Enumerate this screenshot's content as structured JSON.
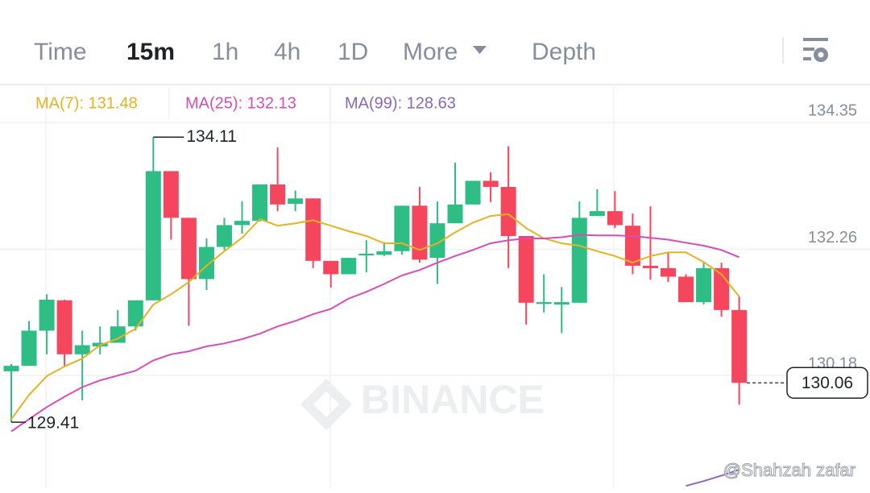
{
  "tabs": [
    "Time",
    "15m",
    "1h",
    "4h",
    "1D",
    "More",
    "Depth"
  ],
  "chart_data": {
    "type": "candlestick",
    "up_color": "#2ebd85",
    "down_color": "#f6465d",
    "ylim": [
      128.31,
      134.95
    ],
    "yticks": [
      134.35,
      132.26,
      130.18
    ],
    "grid": true,
    "open": [
      130.25,
      130.34,
      130.92,
      131.42,
      130.53,
      130.66,
      130.72,
      130.99,
      131.42,
      133.55,
      132.78,
      131.77,
      132.3,
      132.66,
      132.73,
      133.33,
      133.01,
      133.1,
      132.07,
      131.85,
      132.16,
      132.17,
      132.23,
      132.98,
      132.12,
      132.69,
      133.0,
      133.39,
      133.29,
      132.48,
      131.36,
      131.35,
      131.38,
      132.81,
      132.89,
      132.65,
      131.99,
      131.95,
      131.81,
      131.39,
      131.95,
      131.26
    ],
    "high": [
      130.37,
      131.08,
      131.52,
      131.43,
      130.92,
      130.99,
      131.26,
      131.42,
      134.11,
      133.55,
      132.78,
      132.44,
      132.78,
      133.05,
      133.33,
      133.94,
      133.23,
      133.1,
      132.07,
      132.12,
      132.41,
      132.38,
      132.98,
      133.29,
      133.05,
      133.69,
      133.39,
      133.53,
      133.96,
      132.48,
      131.85,
      131.64,
      133.05,
      133.25,
      133.22,
      132.85,
      132.97,
      132.21,
      131.85,
      132.04,
      132.04,
      131.48
    ],
    "low": [
      129.41,
      130.34,
      130.53,
      130.33,
      129.77,
      130.53,
      130.72,
      130.92,
      131.42,
      132.42,
      131.0,
      131.59,
      132.25,
      132.52,
      132.72,
      132.89,
      132.89,
      131.95,
      131.63,
      131.85,
      131.88,
      132.15,
      132.17,
      132.04,
      131.69,
      132.69,
      133.0,
      133.04,
      131.95,
      131.02,
      131.22,
      130.88,
      131.38,
      132.81,
      132.61,
      131.85,
      131.76,
      131.72,
      131.39,
      131.35,
      131.15,
      129.7
    ],
    "close": [
      130.34,
      130.92,
      131.43,
      130.53,
      130.68,
      130.72,
      130.99,
      131.42,
      133.55,
      132.78,
      131.77,
      132.3,
      132.66,
      132.73,
      133.33,
      133.0,
      133.1,
      132.07,
      131.85,
      132.12,
      132.19,
      132.23,
      132.98,
      132.09,
      132.69,
      133.0,
      133.39,
      133.29,
      132.48,
      131.38,
      131.39,
      131.39,
      132.78,
      132.89,
      132.66,
      131.99,
      131.95,
      131.81,
      131.39,
      131.95,
      131.26,
      130.06
    ],
    "series": [
      {
        "name": "MA(7): 131.48",
        "color": "#e6b320",
        "values": [
          129.46,
          129.86,
          130.17,
          130.33,
          130.46,
          130.68,
          130.79,
          130.95,
          131.35,
          131.52,
          131.72,
          131.99,
          132.23,
          132.45,
          132.76,
          132.65,
          132.69,
          132.74,
          132.65,
          132.56,
          132.48,
          132.36,
          132.36,
          132.25,
          132.36,
          132.54,
          132.7,
          132.81,
          132.84,
          132.61,
          132.44,
          132.36,
          132.32,
          132.23,
          132.15,
          132.04,
          132.15,
          132.21,
          132.21,
          132.05,
          131.85,
          131.48
        ]
      },
      {
        "name": "MA(25): 132.13",
        "color": "#d94cb8",
        "values": [
          129.26,
          129.46,
          129.66,
          129.83,
          129.99,
          130.1,
          130.18,
          130.26,
          130.43,
          130.53,
          130.58,
          130.66,
          130.71,
          130.78,
          130.87,
          130.99,
          131.08,
          131.19,
          131.28,
          131.45,
          131.56,
          131.69,
          131.83,
          131.92,
          132.04,
          132.15,
          132.25,
          132.36,
          132.41,
          132.44,
          132.44,
          132.46,
          132.5,
          132.49,
          132.49,
          132.48,
          132.45,
          132.42,
          132.37,
          132.32,
          132.25,
          132.13
        ]
      },
      {
        "name": "MA(99): 128.63",
        "color": "#8c66b8",
        "values": [
          null,
          null,
          null,
          null,
          null,
          null,
          null,
          null,
          null,
          null,
          null,
          null,
          null,
          null,
          null,
          null,
          null,
          null,
          null,
          null,
          null,
          null,
          null,
          null,
          null,
          null,
          null,
          null,
          null,
          null,
          null,
          null,
          null,
          null,
          null,
          null,
          null,
          null,
          128.36,
          128.44,
          128.53,
          128.63
        ]
      }
    ],
    "annotations": {
      "high": 134.11,
      "low": 129.41,
      "last": 130.06
    },
    "watermark": "BINANCE",
    "overlay_text": "@Shahzah zafar"
  }
}
